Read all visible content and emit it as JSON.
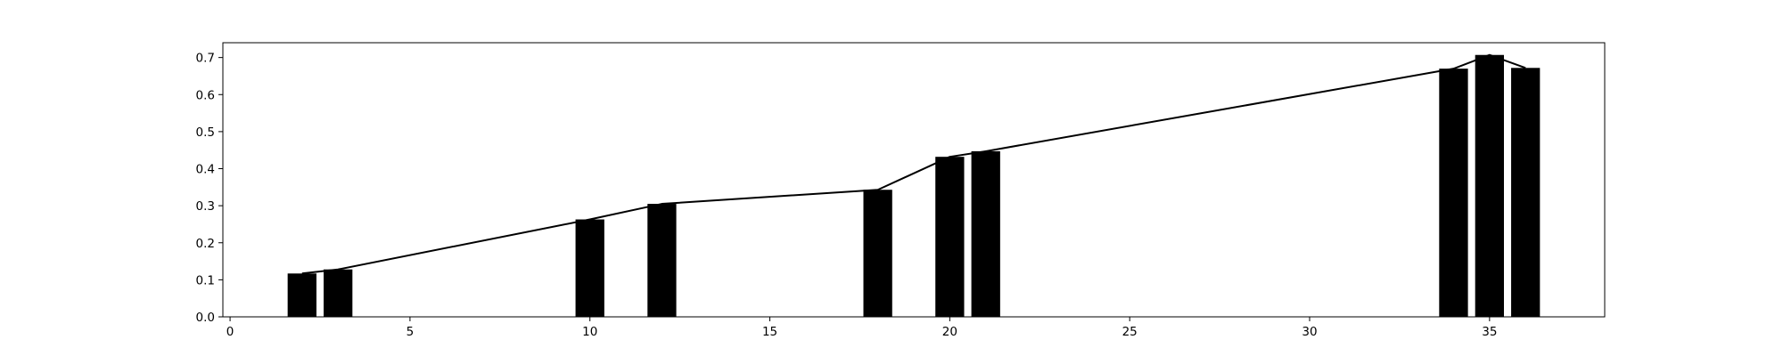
{
  "chart_data": {
    "type": "bar",
    "title": "",
    "xlabel": "",
    "ylabel": "",
    "xlim": [
      -0.2,
      38.2
    ],
    "ylim": [
      0,
      0.74
    ],
    "grid": false,
    "legend": "none",
    "bar_width": 0.8,
    "bar_color": "#000000",
    "line_color": "#000000",
    "x": [
      2,
      3,
      10,
      12,
      18,
      20,
      21,
      34,
      35,
      36
    ],
    "values": [
      0.117,
      0.128,
      0.263,
      0.305,
      0.343,
      0.432,
      0.447,
      0.67,
      0.707,
      0.672
    ],
    "x_ticks": [
      0,
      5,
      10,
      15,
      20,
      25,
      30,
      35
    ],
    "x_tick_labels": [
      "0",
      "5",
      "10",
      "15",
      "20",
      "25",
      "30",
      "35"
    ],
    "y_ticks": [
      0.0,
      0.1,
      0.2,
      0.3,
      0.4,
      0.5,
      0.6,
      0.7
    ],
    "y_tick_labels": [
      "0.0",
      "0.1",
      "0.2",
      "0.3",
      "0.4",
      "0.5",
      "0.6",
      "0.7"
    ]
  }
}
